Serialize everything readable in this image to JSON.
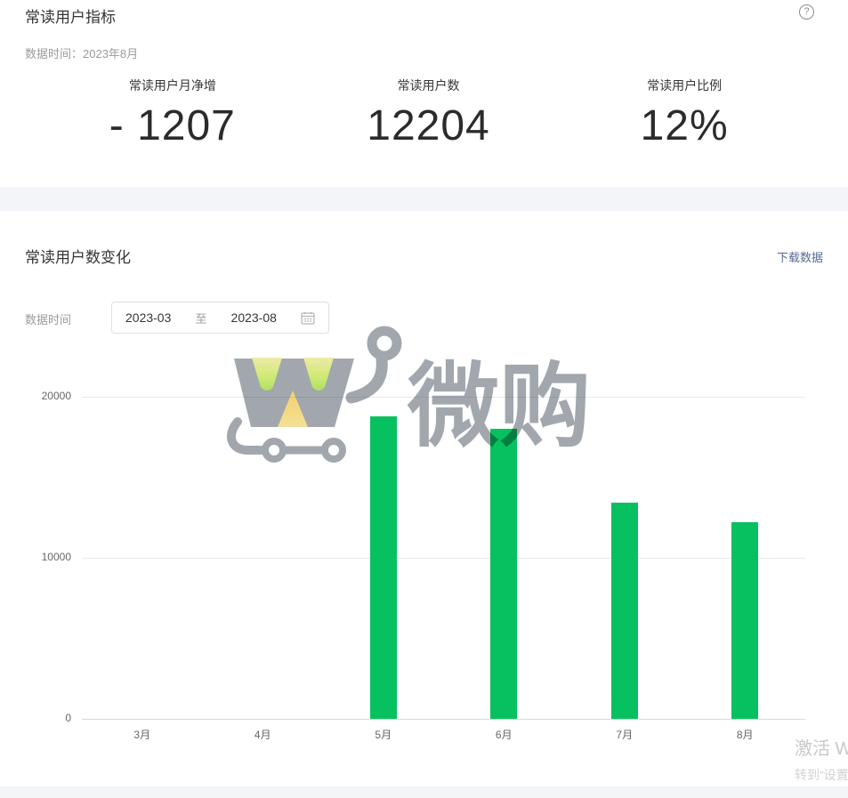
{
  "header": {
    "title": "常读用户指标",
    "help_glyph": "?",
    "data_time_label": "数据时间：",
    "data_time_value": "2023年8月"
  },
  "metrics": [
    {
      "label": "常读用户月净增",
      "value": "- 1207"
    },
    {
      "label": "常读用户数",
      "value": "12204"
    },
    {
      "label": "常读用户比例",
      "value": "12%"
    }
  ],
  "trend_section": {
    "title": "常读用户数变化",
    "download_link": "下载数据",
    "data_time_label": "数据时间",
    "date_range": {
      "start": "2023-03",
      "separator": "至",
      "end": "2023-08",
      "calendar_icon": "calendar"
    }
  },
  "chart_data": {
    "type": "bar",
    "title": "常读用户数变化",
    "categories": [
      "3月",
      "4月",
      "5月",
      "6月",
      "7月",
      "8月"
    ],
    "values": [
      0,
      0,
      18800,
      18000,
      13411,
      12204
    ],
    "yticks": [
      0,
      10000,
      20000
    ],
    "ylim": [
      0,
      20000
    ],
    "xlabel": "",
    "ylabel": "",
    "grid": true,
    "legend": false,
    "bar_color": "#07c160"
  },
  "watermark": {
    "logo": "shopping-cart",
    "text": "微购"
  },
  "os_watermark": {
    "line1": "激活 Windows",
    "line2": "转到“设置”以激活 Windows。"
  },
  "colors": {
    "accent_green": "#07c160",
    "link_blue": "#576b95",
    "gap_bg": "#f4f5f8"
  }
}
